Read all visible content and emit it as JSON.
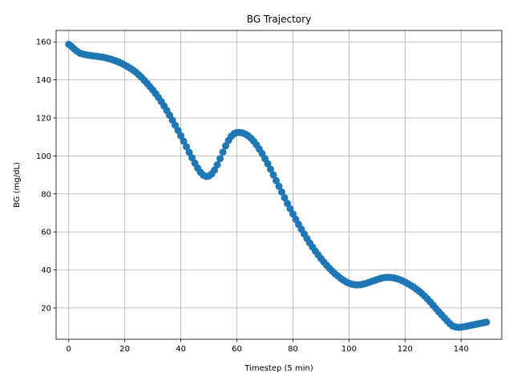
{
  "chart_data": {
    "type": "line",
    "title": "BG Trajectory",
    "xlabel": "Timestep (5 min)",
    "ylabel": "BG (mg/dL)",
    "xlim": [
      -4.5,
      154.5
    ],
    "ylim": [
      3.5,
      166
    ],
    "xticks": [
      0,
      20,
      40,
      60,
      80,
      100,
      120,
      140
    ],
    "yticks": [
      20,
      40,
      60,
      80,
      100,
      120,
      140,
      160
    ],
    "grid": true,
    "series": [
      {
        "marker": "circle",
        "color": "#1f77b4",
        "x": [
          0,
          1,
          2,
          3,
          4,
          5,
          6,
          7,
          8,
          9,
          10,
          11,
          12,
          13,
          14,
          15,
          16,
          17,
          18,
          19,
          20,
          21,
          22,
          23,
          24,
          25,
          26,
          27,
          28,
          29,
          30,
          31,
          32,
          33,
          34,
          35,
          36,
          37,
          38,
          39,
          40,
          41,
          42,
          43,
          44,
          45,
          46,
          47,
          48,
          49,
          50,
          51,
          52,
          53,
          54,
          55,
          56,
          57,
          58,
          59,
          60,
          61,
          62,
          63,
          64,
          65,
          66,
          67,
          68,
          69,
          70,
          71,
          72,
          73,
          74,
          75,
          76,
          77,
          78,
          79,
          80,
          81,
          82,
          83,
          84,
          85,
          86,
          87,
          88,
          89,
          90,
          91,
          92,
          93,
          94,
          95,
          96,
          97,
          98,
          99,
          100,
          101,
          102,
          103,
          104,
          105,
          106,
          107,
          108,
          109,
          110,
          111,
          112,
          113,
          114,
          115,
          116,
          117,
          118,
          119,
          120,
          121,
          122,
          123,
          124,
          125,
          126,
          127,
          128,
          129,
          130,
          131,
          132,
          133,
          134,
          135,
          136,
          137,
          138,
          139,
          140,
          141,
          142,
          143,
          144,
          145,
          146,
          147,
          148,
          149
        ],
        "y": [
          158.7,
          157.6,
          156.2,
          155.0,
          154.1,
          153.6,
          153.3,
          153.0,
          152.8,
          152.6,
          152.4,
          152.2,
          152.0,
          151.7,
          151.3,
          150.9,
          150.4,
          149.9,
          149.3,
          148.6,
          147.8,
          147.0,
          146.1,
          145.1,
          144.0,
          142.7,
          141.3,
          139.7,
          138.1,
          136.4,
          134.7,
          132.8,
          130.8,
          128.6,
          126.3,
          123.9,
          121.4,
          118.8,
          116.1,
          113.4,
          110.6,
          107.7,
          104.8,
          101.9,
          99.0,
          96.2,
          93.6,
          91.4,
          89.9,
          89.2,
          89.4,
          90.5,
          92.5,
          95.3,
          98.6,
          102.0,
          105.3,
          108.1,
          110.3,
          111.7,
          112.3,
          112.3,
          112.1,
          111.5,
          110.6,
          109.3,
          107.7,
          105.8,
          103.6,
          101.2,
          98.6,
          95.9,
          93.0,
          90.0,
          87.0,
          84.0,
          81.0,
          78.0,
          75.0,
          72.2,
          69.4,
          66.6,
          64.0,
          61.4,
          58.9,
          56.5,
          54.2,
          52.0,
          49.9,
          47.9,
          46.0,
          44.2,
          42.5,
          40.9,
          39.4,
          38.0,
          36.8,
          35.6,
          34.6,
          33.7,
          33.0,
          32.5,
          32.2,
          32.1,
          32.2,
          32.5,
          32.9,
          33.4,
          33.9,
          34.4,
          34.9,
          35.4,
          35.8,
          36.0,
          36.1,
          36.0,
          35.8,
          35.4,
          34.9,
          34.3,
          33.6,
          32.8,
          31.9,
          31.0,
          29.9,
          28.8,
          27.6,
          26.2,
          24.7,
          23.1,
          21.4,
          19.7,
          18.0,
          16.4,
          14.8,
          13.2,
          11.7,
          10.5,
          10.0,
          9.8,
          9.9,
          10.1,
          10.4,
          10.7,
          11.0,
          11.3,
          11.6,
          11.9,
          12.2,
          12.5
        ]
      }
    ]
  }
}
